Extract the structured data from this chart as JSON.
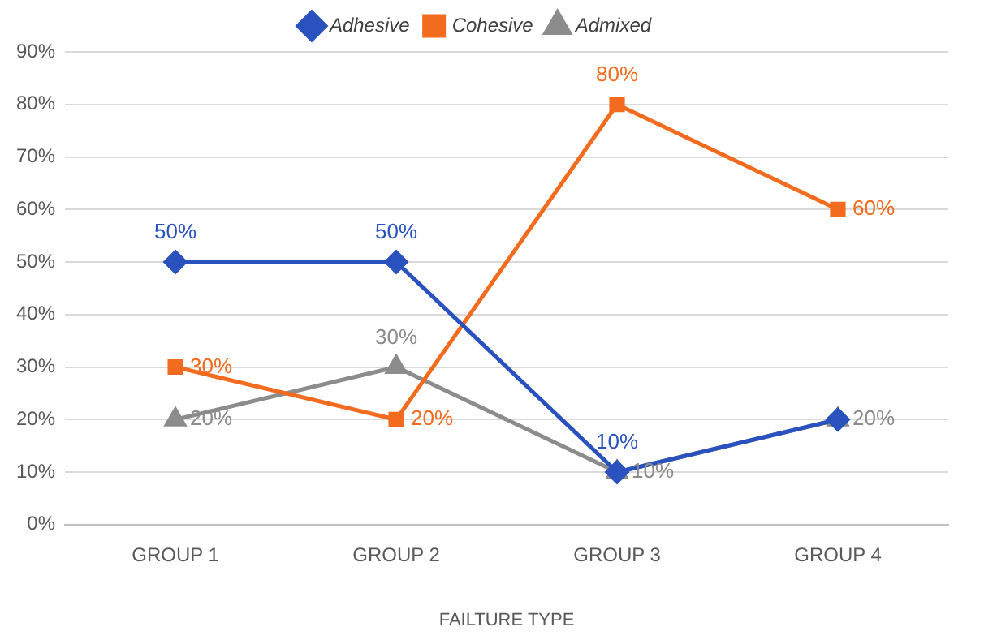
{
  "chart_data": {
    "type": "line",
    "xlabel": "FAILTURE TYPE",
    "categories": [
      "GROUP 1",
      "GROUP 2",
      "GROUP 3",
      "GROUP 4"
    ],
    "series": [
      {
        "name": "Adhesive",
        "color": "#2a52be",
        "marker": "diamond",
        "values": [
          50,
          50,
          10,
          20
        ],
        "value_labels": [
          "50%",
          "50%",
          "10%",
          null
        ]
      },
      {
        "name": "Cohesive",
        "color": "#f26b1f",
        "marker": "square",
        "values": [
          30,
          20,
          80,
          60
        ],
        "value_labels": [
          "30%",
          "20%",
          "80%",
          "60%"
        ]
      },
      {
        "name": "Admixed",
        "color": "#8c8c8c",
        "marker": "triangle",
        "values": [
          20,
          30,
          10,
          20
        ],
        "value_labels": [
          "20%",
          "30%",
          "10%",
          "20%"
        ]
      }
    ],
    "ylim": [
      0,
      90
    ],
    "yticks": [
      {
        "value": 0,
        "label": "0%"
      },
      {
        "value": 10,
        "label": "10%"
      },
      {
        "value": 20,
        "label": "20%"
      },
      {
        "value": 30,
        "label": "30%"
      },
      {
        "value": 40,
        "label": "40%"
      },
      {
        "value": 50,
        "label": "50%"
      },
      {
        "value": 60,
        "label": "60%"
      },
      {
        "value": 70,
        "label": "70%"
      },
      {
        "value": 80,
        "label": "80%"
      },
      {
        "value": 90,
        "label": "90%"
      }
    ],
    "grid": "y",
    "legend": "top",
    "line_style": "solid"
  }
}
